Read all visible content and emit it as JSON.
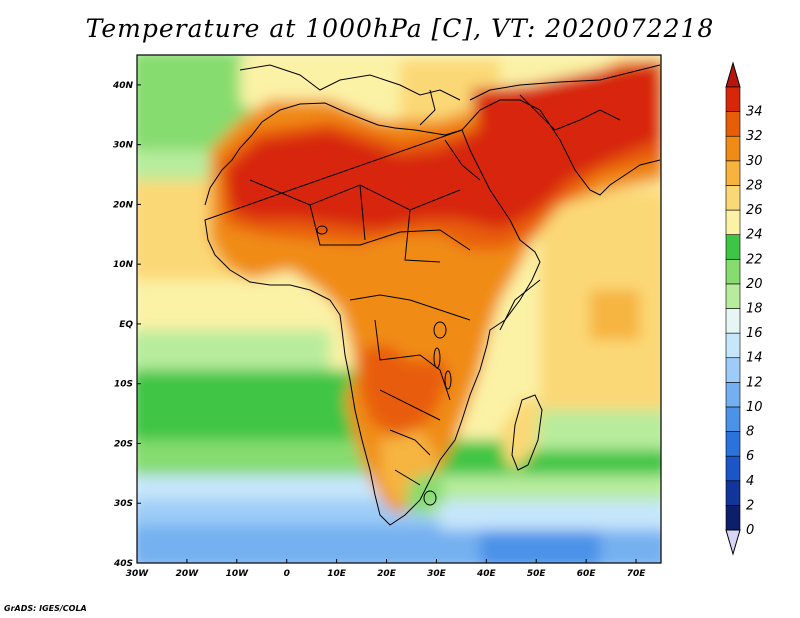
{
  "title": "Temperature at 1000hPa [C], VT: 2020072218",
  "credit": "GrADS: IGES/COLA",
  "map": {
    "lon_range": [
      -30,
      75
    ],
    "lat_range": [
      -40,
      45
    ],
    "lon_ticks": [
      {
        "value": -30,
        "label": "30W"
      },
      {
        "value": -20,
        "label": "20W"
      },
      {
        "value": -10,
        "label": "10W"
      },
      {
        "value": 0,
        "label": "0"
      },
      {
        "value": 10,
        "label": "10E"
      },
      {
        "value": 20,
        "label": "20E"
      },
      {
        "value": 30,
        "label": "30E"
      },
      {
        "value": 40,
        "label": "40E"
      },
      {
        "value": 50,
        "label": "50E"
      },
      {
        "value": 60,
        "label": "60E"
      },
      {
        "value": 70,
        "label": "70E"
      }
    ],
    "lat_ticks": [
      {
        "value": 40,
        "label": "40N"
      },
      {
        "value": 30,
        "label": "30N"
      },
      {
        "value": 20,
        "label": "20N"
      },
      {
        "value": 10,
        "label": "10N"
      },
      {
        "value": 0,
        "label": "EQ"
      },
      {
        "value": -10,
        "label": "10S"
      },
      {
        "value": -20,
        "label": "20S"
      },
      {
        "value": -30,
        "label": "30S"
      },
      {
        "value": -40,
        "label": "40S"
      }
    ]
  },
  "colorbar": {
    "labels": [
      "0",
      "2",
      "4",
      "6",
      "8",
      "10",
      "12",
      "14",
      "16",
      "18",
      "20",
      "22",
      "24",
      "26",
      "28",
      "30",
      "32",
      "34"
    ],
    "colors": [
      "#0d1f6b",
      "#12359c",
      "#1c55c8",
      "#2a72dc",
      "#4b92e8",
      "#74b0f0",
      "#9cccf7",
      "#c6e6fb",
      "#e6f6f4",
      "#b7ec9c",
      "#86dc6e",
      "#3fc545",
      "#fbf2a6",
      "#fbd876",
      "#f6b43f",
      "#f08c16",
      "#e85d08",
      "#d7260a",
      "#b8150c"
    ],
    "under_color": "#d8d6f6"
  },
  "field_colors": {
    "ocean_cold_deep": "#2a72dc",
    "ocean_cold": "#74b0f0",
    "ocean_cool": "#c6e6fb",
    "ocean_mild": "#86dc6e",
    "ocean_green": "#3fc545",
    "ocean_warm": "#fbd876",
    "ocean_warmer": "#f6b43f",
    "land_hot": "#e85d08",
    "land_hottest": "#d7260a",
    "land_warm": "#f08c16",
    "borders": "#000000"
  }
}
